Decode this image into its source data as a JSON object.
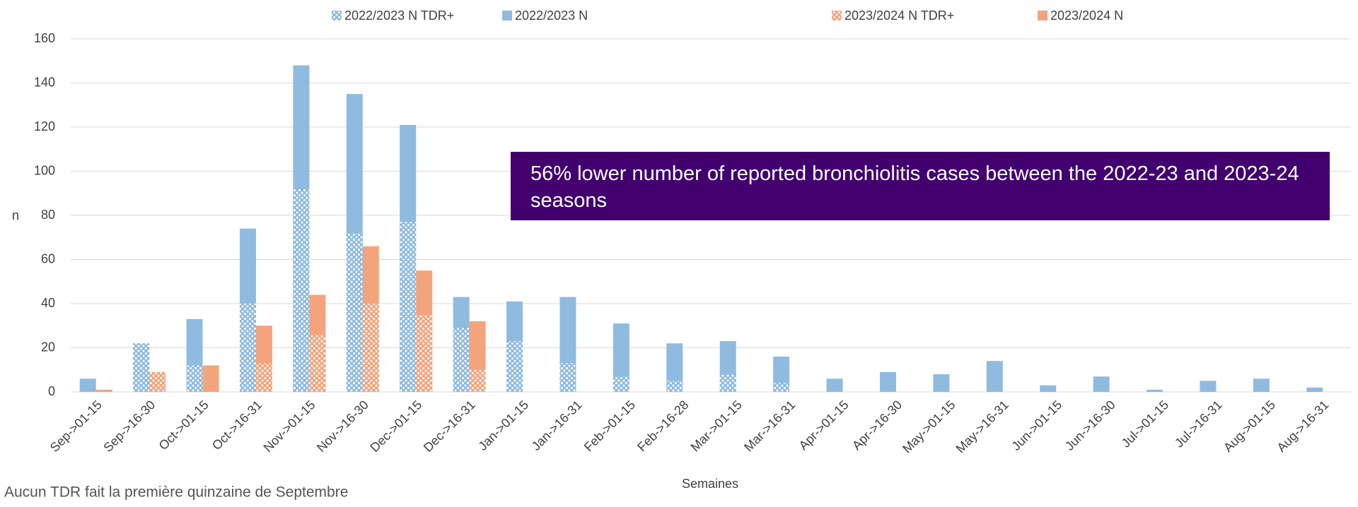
{
  "chart_data": {
    "type": "bar",
    "categories": [
      "Sep->01-15",
      "Sep->16-30",
      "Oct->01-15",
      "Oct->16-31",
      "Nov->01-15",
      "Nov->16-30",
      "Dec->01-15",
      "Dec->16-31",
      "Jan->01-15",
      "Jan->16-31",
      "Feb->01-15",
      "Feb->16-28",
      "Mar->01-15",
      "Mar->16-31",
      "Apr->01-15",
      "Apr->16-30",
      "May->01-15",
      "May->16-31",
      "Jun->01-15",
      "Jun->16-30",
      "Jul->01-15",
      "Jul->16-31",
      "Aug->01-15",
      "Aug->16-31"
    ],
    "series": [
      {
        "name": "2022/2023 N TDR+",
        "color": "#8fbbe0",
        "pattern": true,
        "values": [
          null,
          22,
          12,
          40,
          92,
          72,
          77,
          29,
          23,
          13,
          7,
          5,
          8,
          4,
          0,
          0,
          0,
          0,
          0,
          0,
          0,
          0,
          0,
          0
        ]
      },
      {
        "name": "2022/2023 N",
        "color": "#8fbbe0",
        "pattern": false,
        "values": [
          6,
          22,
          33,
          74,
          148,
          135,
          121,
          43,
          41,
          43,
          31,
          22,
          23,
          16,
          6,
          9,
          8,
          14,
          3,
          7,
          1,
          5,
          6,
          2
        ]
      },
      {
        "name": "2023/2024 N TDR+",
        "color": "#f3a47c",
        "pattern": true,
        "values": [
          null,
          9,
          0,
          13,
          26,
          40,
          35,
          10,
          null,
          null,
          null,
          null,
          null,
          null,
          null,
          null,
          null,
          null,
          null,
          null,
          null,
          null,
          null,
          null
        ]
      },
      {
        "name": "2023/2024 N",
        "color": "#f3a47c",
        "pattern": false,
        "values": [
          1,
          9,
          12,
          30,
          44,
          66,
          55,
          32,
          null,
          null,
          null,
          null,
          null,
          null,
          null,
          null,
          null,
          null,
          null,
          null,
          null,
          null,
          null,
          null
        ]
      }
    ],
    "ylim": [
      0,
      160
    ],
    "yticks": [
      0,
      20,
      40,
      60,
      80,
      100,
      120,
      140,
      160
    ],
    "grid": true,
    "y_label": "n",
    "x_label": "Semaines",
    "annotation": "56% lower number of reported bronchiolitis cases between the 2022-23 and 2023-24 seasons",
    "annotation_color": "#41006e",
    "note": "Aucun TDR fait la première quinzaine de Septembre"
  }
}
